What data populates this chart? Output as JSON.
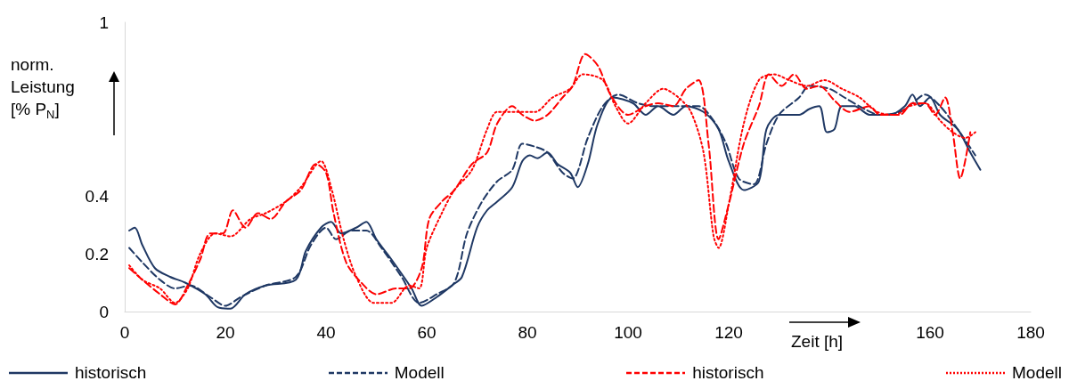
{
  "chart_data": {
    "type": "line",
    "xlabel": "Zeit [h]",
    "ylabel": "norm. Leistung [% P$_{N}$]",
    "xlim": [
      0,
      180
    ],
    "xticks": [
      0,
      20,
      40,
      60,
      80,
      100,
      120,
      160,
      180
    ],
    "ylim": [
      0,
      1
    ],
    "yticks": [
      0,
      0.2,
      0.4,
      1
    ],
    "grid": false,
    "legend": "bottom",
    "marker": "none",
    "series": [
      {
        "name": "historisch",
        "color": "#1f3864",
        "line_style": "solid",
        "x": [
          0.9,
          2,
          3.5,
          6,
          9,
          12,
          16,
          18.5,
          21,
          24,
          28,
          34,
          36,
          39,
          41,
          43,
          46,
          48,
          50,
          53,
          57,
          59,
          62,
          65,
          67,
          70,
          72,
          74,
          77,
          79,
          80.5,
          82,
          84,
          86,
          88.5,
          90,
          92,
          94,
          97,
          101,
          103.5,
          106,
          109,
          111.5,
          115,
          118,
          120,
          123,
          126,
          127.5,
          130,
          134,
          136,
          138,
          139.5,
          141,
          142.5,
          145,
          148,
          150,
          152,
          155,
          156.5,
          158,
          160,
          162,
          165.5,
          168,
          170
        ],
        "values": [
          0.28,
          0.29,
          0.23,
          0.15,
          0.12,
          0.1,
          0.06,
          0.015,
          0.01,
          0.06,
          0.09,
          0.11,
          0.21,
          0.29,
          0.31,
          0.27,
          0.29,
          0.31,
          0.25,
          0.18,
          0.08,
          0.02,
          0.05,
          0.09,
          0.12,
          0.29,
          0.35,
          0.38,
          0.43,
          0.52,
          0.54,
          0.53,
          0.55,
          0.51,
          0.48,
          0.43,
          0.51,
          0.65,
          0.74,
          0.72,
          0.68,
          0.71,
          0.68,
          0.71,
          0.69,
          0.63,
          0.52,
          0.42,
          0.45,
          0.63,
          0.68,
          0.68,
          0.7,
          0.71,
          0.62,
          0.63,
          0.71,
          0.71,
          0.68,
          0.68,
          0.68,
          0.71,
          0.75,
          0.71,
          0.74,
          0.68,
          0.63,
          0.55,
          0.49
        ]
      },
      {
        "name": "Modell",
        "color": "#1f3864",
        "line_style": "dashed",
        "x": [
          0.9,
          3.5,
          7,
          10,
          13,
          17,
          20,
          23,
          28,
          34,
          37,
          40,
          42,
          45,
          48,
          51,
          55,
          58.5,
          62,
          65.5,
          68,
          71,
          74,
          77,
          79,
          81.5,
          84,
          87,
          89,
          92,
          95,
          98,
          102,
          105,
          110,
          114,
          117,
          119.5,
          122,
          125,
          127.5,
          130,
          134,
          136,
          140,
          143,
          147,
          150,
          154,
          156.5,
          159,
          162,
          165.5,
          169
        ],
        "values": [
          0.22,
          0.17,
          0.11,
          0.08,
          0.09,
          0.05,
          0.02,
          0.05,
          0.09,
          0.12,
          0.23,
          0.29,
          0.25,
          0.28,
          0.28,
          0.22,
          0.12,
          0.03,
          0.06,
          0.1,
          0.27,
          0.38,
          0.45,
          0.49,
          0.58,
          0.57,
          0.55,
          0.48,
          0.46,
          0.6,
          0.71,
          0.75,
          0.72,
          0.71,
          0.71,
          0.71,
          0.66,
          0.58,
          0.46,
          0.44,
          0.58,
          0.68,
          0.74,
          0.78,
          0.77,
          0.74,
          0.7,
          0.68,
          0.69,
          0.72,
          0.75,
          0.71,
          0.63,
          0.54
        ]
      },
      {
        "name": "historisch",
        "color": "#ff0000",
        "line_style": "dashed",
        "x": [
          0.9,
          3.5,
          7,
          10,
          12.5,
          15,
          17,
          19.5,
          21.5,
          24,
          26.5,
          29,
          32,
          35,
          38,
          40,
          41.5,
          44,
          47,
          50,
          54,
          56.5,
          59,
          60.5,
          63,
          65.5,
          69,
          72,
          74,
          77,
          79,
          81.5,
          84,
          87,
          89,
          91.5,
          94,
          96.5,
          100,
          103.5,
          106,
          109,
          111.5,
          114,
          116,
          118,
          120,
          123,
          126,
          128,
          130.5,
          133,
          135.5,
          138,
          141,
          144,
          148,
          150,
          154,
          156.5,
          159,
          161,
          163,
          164.5,
          166,
          168
        ],
        "values": [
          0.15,
          0.11,
          0.06,
          0.025,
          0.09,
          0.18,
          0.27,
          0.27,
          0.35,
          0.29,
          0.34,
          0.32,
          0.38,
          0.42,
          0.51,
          0.48,
          0.34,
          0.17,
          0.1,
          0.06,
          0.08,
          0.08,
          0.15,
          0.32,
          0.38,
          0.42,
          0.51,
          0.55,
          0.65,
          0.71,
          0.68,
          0.66,
          0.68,
          0.74,
          0.78,
          0.89,
          0.85,
          0.75,
          0.68,
          0.71,
          0.72,
          0.71,
          0.77,
          0.8,
          0.58,
          0.25,
          0.37,
          0.58,
          0.71,
          0.82,
          0.78,
          0.82,
          0.77,
          0.78,
          0.73,
          0.69,
          0.71,
          0.68,
          0.68,
          0.72,
          0.72,
          0.68,
          0.74,
          0.62,
          0.46,
          0.62
        ]
      },
      {
        "name": "Modell",
        "color": "#ff0000",
        "line_style": "dotted",
        "x": [
          0.9,
          3.5,
          7,
          10,
          12.5,
          15,
          18,
          21,
          25,
          28,
          32,
          35,
          39,
          41,
          43.5,
          46,
          49.5,
          53,
          56.5,
          58.5,
          60,
          63,
          65.5,
          69,
          72,
          74,
          78,
          81.5,
          85,
          88.5,
          91,
          95,
          97.5,
          100,
          103.5,
          107,
          110,
          112.5,
          115,
          117,
          118,
          120,
          123,
          126,
          129,
          132,
          135.5,
          139,
          142.5,
          146,
          149.5,
          153,
          156,
          159,
          162,
          164.5,
          167,
          169
        ],
        "values": [
          0.16,
          0.11,
          0.08,
          0.03,
          0.08,
          0.2,
          0.27,
          0.26,
          0.32,
          0.34,
          0.38,
          0.43,
          0.52,
          0.43,
          0.25,
          0.12,
          0.03,
          0.03,
          0.09,
          0.08,
          0.22,
          0.34,
          0.42,
          0.49,
          0.63,
          0.69,
          0.69,
          0.69,
          0.74,
          0.77,
          0.82,
          0.8,
          0.71,
          0.65,
          0.72,
          0.77,
          0.74,
          0.69,
          0.55,
          0.26,
          0.22,
          0.37,
          0.65,
          0.8,
          0.82,
          0.8,
          0.78,
          0.8,
          0.77,
          0.74,
          0.69,
          0.68,
          0.71,
          0.72,
          0.66,
          0.62,
          0.6,
          0.62
        ]
      }
    ]
  }
}
